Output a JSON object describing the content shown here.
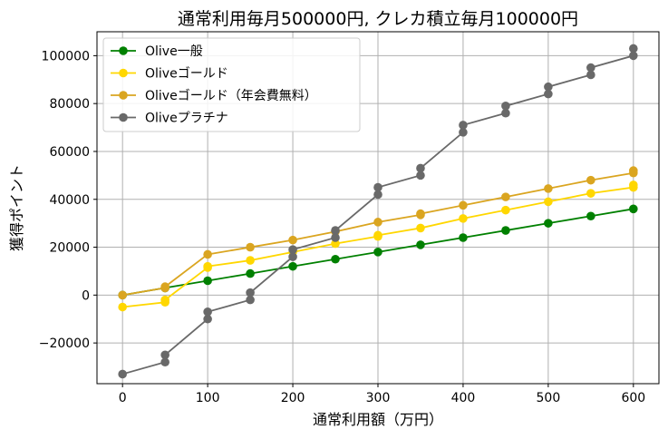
{
  "chart_data": {
    "type": "line",
    "title": "通常利用毎月500000円, クレカ積立毎月100000円",
    "xlabel": "通常利用額（万円）",
    "ylabel": "獲得ポイント",
    "xlim": [
      -30,
      630
    ],
    "ylim": [
      -37000,
      110000
    ],
    "xticks": [
      0,
      100,
      200,
      300,
      400,
      500,
      600
    ],
    "yticks": [
      -20000,
      0,
      20000,
      40000,
      60000,
      80000,
      100000
    ],
    "ytick_labels": [
      "−20000",
      "0",
      "20000",
      "40000",
      "60000",
      "80000",
      "100000"
    ],
    "grid": true,
    "legend": "top-left",
    "series": [
      {
        "name": "Olive一般",
        "color": "#008000",
        "points": [
          [
            0,
            0
          ],
          [
            50,
            3000
          ],
          [
            100,
            6000
          ],
          [
            150,
            9000
          ],
          [
            200,
            12000
          ],
          [
            250,
            15000
          ],
          [
            300,
            18000
          ],
          [
            350,
            21000
          ],
          [
            400,
            24000
          ],
          [
            450,
            27000
          ],
          [
            500,
            30000
          ],
          [
            550,
            33000
          ],
          [
            600,
            36000
          ]
        ]
      },
      {
        "name": "Oliveゴールド",
        "color": "#FFD700",
        "points": [
          [
            0,
            -5000
          ],
          [
            50,
            -3000
          ],
          [
            50,
            -2000
          ],
          [
            100,
            11500
          ],
          [
            100,
            12000
          ],
          [
            150,
            14500
          ],
          [
            200,
            18000
          ],
          [
            250,
            21500
          ],
          [
            300,
            24500
          ],
          [
            300,
            25000
          ],
          [
            350,
            28000
          ],
          [
            400,
            32000
          ],
          [
            450,
            35500
          ],
          [
            500,
            39000
          ],
          [
            550,
            42500
          ],
          [
            600,
            45000
          ],
          [
            600,
            46000
          ]
        ]
      },
      {
        "name": "Oliveゴールド（年会費無料）",
        "color": "#DAA520",
        "points": [
          [
            0,
            0
          ],
          [
            50,
            3000
          ],
          [
            50,
            3500
          ],
          [
            100,
            17000
          ],
          [
            150,
            20000
          ],
          [
            200,
            23000
          ],
          [
            250,
            26500
          ],
          [
            300,
            30500
          ],
          [
            350,
            33500
          ],
          [
            350,
            34000
          ],
          [
            400,
            37500
          ],
          [
            450,
            41000
          ],
          [
            500,
            44500
          ],
          [
            550,
            48000
          ],
          [
            600,
            51000
          ],
          [
            600,
            52000
          ]
        ]
      },
      {
        "name": "Oliveプラチナ",
        "color": "#696969",
        "points": [
          [
            0,
            -33000
          ],
          [
            50,
            -28000
          ],
          [
            50,
            -25000
          ],
          [
            100,
            -10000
          ],
          [
            100,
            -7000
          ],
          [
            150,
            -2000
          ],
          [
            150,
            1000
          ],
          [
            200,
            16000
          ],
          [
            200,
            19000
          ],
          [
            250,
            24000
          ],
          [
            250,
            27000
          ],
          [
            300,
            42000
          ],
          [
            300,
            45000
          ],
          [
            350,
            50000
          ],
          [
            350,
            53000
          ],
          [
            400,
            68000
          ],
          [
            400,
            71000
          ],
          [
            450,
            76000
          ],
          [
            450,
            79000
          ],
          [
            500,
            84000
          ],
          [
            500,
            87000
          ],
          [
            550,
            92000
          ],
          [
            550,
            95000
          ],
          [
            600,
            100000
          ],
          [
            600,
            103000
          ]
        ]
      }
    ]
  }
}
